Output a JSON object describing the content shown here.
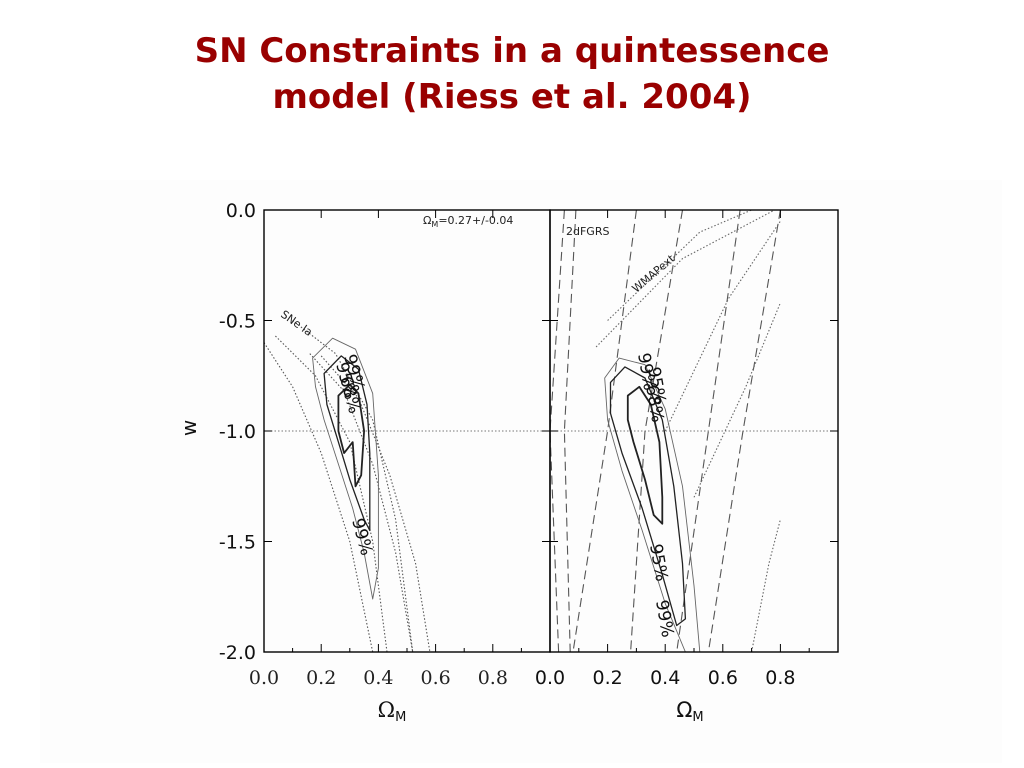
{
  "slide": {
    "title_line1": "SN Constraints in a quintessence",
    "title_line2": "model (Riess et al. 2004)"
  },
  "colors": {
    "title": "#990000",
    "axes": "#000000",
    "curves": "#333333"
  },
  "chart_data": [
    {
      "type": "contour",
      "panel": "left",
      "xlabel": "Ω",
      "xlabel_sub": "M",
      "ylabel": "w",
      "xlim": [
        0.0,
        1.0
      ],
      "ylim": [
        -2.0,
        0.0
      ],
      "xticks": [
        "0.0",
        "0.2",
        "0.4",
        "0.6",
        "0.8"
      ],
      "yticks": [
        "0.0",
        "-0.5",
        "-1.0",
        "-1.5",
        "-2.0"
      ],
      "reference_line_w": -1.0,
      "prior_text": "Ω",
      "prior_sub": "M",
      "prior_value": "=0.27+/-0.04",
      "band_label": "SNe Ia",
      "contour_labels": [
        "99%",
        "95%",
        "68%",
        "99%"
      ],
      "contours": [
        {
          "level": "68%",
          "points": [
            [
              0.26,
              -0.84
            ],
            [
              0.3,
              -0.79
            ],
            [
              0.33,
              -0.83
            ],
            [
              0.35,
              -1.0
            ],
            [
              0.34,
              -1.2
            ],
            [
              0.32,
              -1.25
            ],
            [
              0.31,
              -1.05
            ],
            [
              0.28,
              -1.1
            ],
            [
              0.26,
              -1.0
            ]
          ]
        },
        {
          "level": "95%",
          "points": [
            [
              0.21,
              -0.74
            ],
            [
              0.27,
              -0.66
            ],
            [
              0.33,
              -0.72
            ],
            [
              0.36,
              -0.88
            ],
            [
              0.37,
              -1.1
            ],
            [
              0.37,
              -1.45
            ],
            [
              0.35,
              -1.4
            ],
            [
              0.3,
              -1.22
            ],
            [
              0.26,
              -1.05
            ],
            [
              0.22,
              -0.88
            ]
          ]
        },
        {
          "level": "99%",
          "points": [
            [
              0.17,
              -0.67
            ],
            [
              0.24,
              -0.58
            ],
            [
              0.32,
              -0.63
            ],
            [
              0.38,
              -0.83
            ],
            [
              0.4,
              -1.2
            ],
            [
              0.4,
              -1.62
            ],
            [
              0.38,
              -1.76
            ],
            [
              0.35,
              -1.55
            ],
            [
              0.31,
              -1.35
            ],
            [
              0.26,
              -1.15
            ],
            [
              0.21,
              -0.95
            ],
            [
              0.18,
              -0.8
            ]
          ]
        }
      ],
      "band": [
        [
          [
            0.1,
            -0.5
          ],
          [
            0.25,
            -0.65
          ],
          [
            0.38,
            -0.95
          ],
          [
            0.46,
            -1.4
          ],
          [
            0.52,
            -2.0
          ]
        ],
        [
          [
            0.04,
            -0.57
          ],
          [
            0.18,
            -0.75
          ],
          [
            0.3,
            -1.05
          ],
          [
            0.38,
            -1.5
          ],
          [
            0.43,
            -2.0
          ]
        ],
        [
          [
            0.16,
            -0.65
          ],
          [
            0.28,
            -0.82
          ],
          [
            0.38,
            -1.15
          ],
          [
            0.46,
            -1.55
          ],
          [
            0.52,
            -2.0
          ]
        ],
        [
          [
            0.0,
            -0.6
          ],
          [
            0.1,
            -0.8
          ],
          [
            0.2,
            -1.1
          ],
          [
            0.3,
            -1.5
          ],
          [
            0.38,
            -2.0
          ]
        ],
        [
          [
            0.2,
            -0.66
          ],
          [
            0.33,
            -0.85
          ],
          [
            0.44,
            -1.2
          ],
          [
            0.53,
            -1.6
          ],
          [
            0.58,
            -2.0
          ]
        ]
      ]
    },
    {
      "type": "contour",
      "panel": "right",
      "xlabel": "Ω",
      "xlabel_sub": "M",
      "xlim": [
        0.0,
        1.0
      ],
      "ylim": [
        -2.0,
        0.0
      ],
      "xticks": [
        "0.0",
        "0.2",
        "0.4",
        "0.6",
        "0.8"
      ],
      "reference_line_w": -1.0,
      "label_2dfgrs": "2dFGRS",
      "label_wmap": "WMAPext",
      "contour_labels": [
        "99%",
        "95%",
        "68%",
        "95%",
        "99%"
      ],
      "contours": [
        {
          "level": "68%",
          "points": [
            [
              0.27,
              -0.84
            ],
            [
              0.31,
              -0.8
            ],
            [
              0.35,
              -0.88
            ],
            [
              0.38,
              -1.05
            ],
            [
              0.39,
              -1.3
            ],
            [
              0.39,
              -1.42
            ],
            [
              0.36,
              -1.38
            ],
            [
              0.33,
              -1.22
            ],
            [
              0.29,
              -1.05
            ],
            [
              0.27,
              -0.95
            ]
          ]
        },
        {
          "level": "95%",
          "points": [
            [
              0.21,
              -0.78
            ],
            [
              0.26,
              -0.71
            ],
            [
              0.33,
              -0.76
            ],
            [
              0.39,
              -0.95
            ],
            [
              0.43,
              -1.25
            ],
            [
              0.46,
              -1.6
            ],
            [
              0.47,
              -1.85
            ],
            [
              0.44,
              -1.88
            ],
            [
              0.39,
              -1.65
            ],
            [
              0.32,
              -1.35
            ],
            [
              0.25,
              -1.1
            ],
            [
              0.21,
              -0.92
            ]
          ]
        },
        {
          "level": "99%",
          "points": [
            [
              0.19,
              -0.76
            ],
            [
              0.24,
              -0.67
            ],
            [
              0.33,
              -0.7
            ],
            [
              0.4,
              -0.9
            ],
            [
              0.46,
              -1.25
            ],
            [
              0.5,
              -1.7
            ],
            [
              0.52,
              -2.0
            ],
            [
              0.47,
              -2.0
            ],
            [
              0.4,
              -1.78
            ],
            [
              0.32,
              -1.45
            ],
            [
              0.25,
              -1.18
            ],
            [
              0.2,
              -0.95
            ]
          ]
        }
      ],
      "dashed_2dfgrs": [
        [
          [
            0.05,
            0.0
          ],
          [
            0.0,
            -1.0
          ],
          [
            0.03,
            -2.0
          ]
        ],
        [
          [
            0.09,
            0.0
          ],
          [
            0.05,
            -1.0
          ],
          [
            0.07,
            -2.0
          ]
        ],
        [
          [
            0.3,
            0.0
          ],
          [
            0.2,
            -1.0
          ],
          [
            0.08,
            -2.0
          ]
        ],
        [
          [
            0.46,
            0.0
          ],
          [
            0.33,
            -1.0
          ],
          [
            0.28,
            -2.0
          ]
        ],
        [
          [
            0.66,
            0.0
          ],
          [
            0.55,
            -1.0
          ],
          [
            0.44,
            -2.0
          ]
        ],
        [
          [
            0.8,
            0.0
          ],
          [
            0.67,
            -1.0
          ],
          [
            0.55,
            -2.0
          ]
        ]
      ],
      "dotted_wmap": [
        [
          [
            0.2,
            -0.5
          ],
          [
            0.52,
            -0.1
          ],
          [
            0.7,
            0.0
          ]
        ],
        [
          [
            0.16,
            -0.62
          ],
          [
            0.46,
            -0.22
          ],
          [
            0.78,
            0.0
          ]
        ],
        [
          [
            0.4,
            -1.0
          ],
          [
            0.62,
            -0.4
          ],
          [
            0.8,
            -0.05
          ]
        ],
        [
          [
            0.5,
            -1.3
          ],
          [
            0.68,
            -0.8
          ],
          [
            0.8,
            -0.42
          ]
        ],
        [
          [
            0.7,
            -2.0
          ],
          [
            0.76,
            -1.6
          ],
          [
            0.8,
            -1.4
          ]
        ]
      ]
    }
  ]
}
